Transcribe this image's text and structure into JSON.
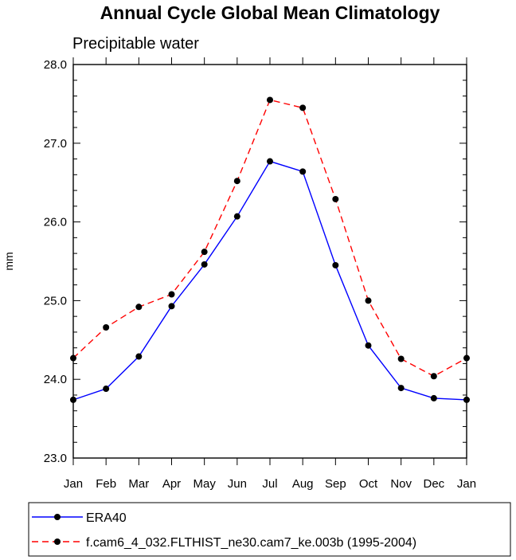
{
  "chart_data": {
    "type": "line",
    "title": "Annual Cycle Global Mean Climatology",
    "subtitle": "Precipitable water",
    "xlabel": "",
    "ylabel": "mm",
    "categories": [
      "Jan",
      "Feb",
      "Mar",
      "Apr",
      "May",
      "Jun",
      "Jul",
      "Aug",
      "Sep",
      "Oct",
      "Nov",
      "Dec",
      "Jan"
    ],
    "ylim": [
      23.0,
      28.0
    ],
    "yticks": [
      "23.0",
      "24.0",
      "25.0",
      "26.0",
      "27.0",
      "28.0"
    ],
    "grid": false,
    "legend_position": "bottom",
    "series": [
      {
        "name": "ERA40",
        "color": "#0000ff",
        "dash": "solid",
        "values": [
          23.74,
          23.88,
          24.29,
          24.93,
          25.46,
          26.07,
          26.77,
          26.64,
          25.45,
          24.43,
          23.89,
          23.76,
          23.74
        ]
      },
      {
        "name": "f.cam6_4_032.FLTHIST_ne30.cam7_ke.003b (1995-2004)",
        "color": "#ff0000",
        "dash": "dashed",
        "values": [
          24.27,
          24.66,
          24.92,
          25.08,
          25.62,
          26.52,
          27.55,
          27.45,
          26.29,
          25.0,
          24.26,
          24.04,
          24.27
        ]
      }
    ]
  }
}
